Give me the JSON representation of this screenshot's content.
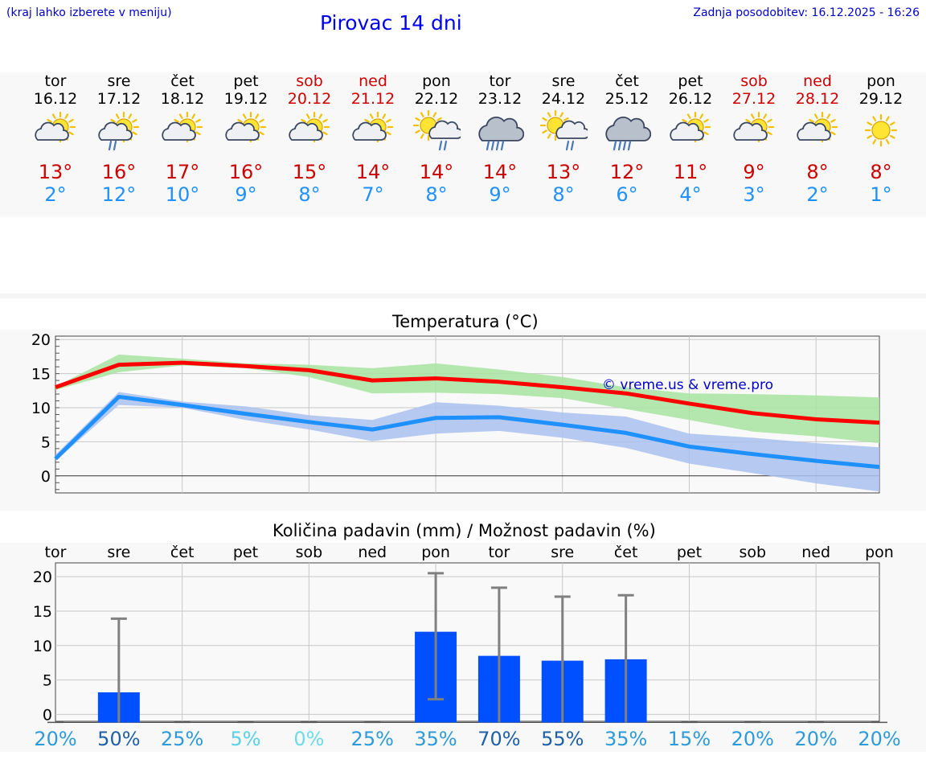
{
  "header": {
    "note": "(kraj lahko izberete v meniju)",
    "title": "Pirovac 14 dni",
    "updated": "Zadnja posodobitev: 16.12.2025 - 16:26"
  },
  "days": [
    {
      "name": "tor",
      "date": "16.12",
      "weekend": false,
      "icon": "sun-cloud-icon",
      "max": "13°",
      "min": "2°"
    },
    {
      "name": "sre",
      "date": "17.12",
      "weekend": false,
      "icon": "sun-cloud-rain-icon",
      "max": "16°",
      "min": "12°"
    },
    {
      "name": "čet",
      "date": "18.12",
      "weekend": false,
      "icon": "sun-cloud-icon",
      "max": "17°",
      "min": "10°"
    },
    {
      "name": "pet",
      "date": "19.12",
      "weekend": false,
      "icon": "sun-cloud-icon",
      "max": "16°",
      "min": "9°"
    },
    {
      "name": "sob",
      "date": "20.12",
      "weekend": true,
      "icon": "sun-cloud-icon",
      "max": "15°",
      "min": "8°"
    },
    {
      "name": "ned",
      "date": "21.12",
      "weekend": true,
      "icon": "sun-cloud-icon",
      "max": "14°",
      "min": "7°"
    },
    {
      "name": "pon",
      "date": "22.12",
      "weekend": false,
      "icon": "sun-rain-cloud-icon",
      "max": "14°",
      "min": "8°"
    },
    {
      "name": "tor",
      "date": "23.12",
      "weekend": false,
      "icon": "rain-cloud-icon",
      "max": "14°",
      "min": "9°"
    },
    {
      "name": "sre",
      "date": "24.12",
      "weekend": false,
      "icon": "sun-rain-cloud-icon",
      "max": "13°",
      "min": "8°"
    },
    {
      "name": "čet",
      "date": "25.12",
      "weekend": false,
      "icon": "rain-cloud-icon",
      "max": "12°",
      "min": "6°"
    },
    {
      "name": "pet",
      "date": "26.12",
      "weekend": false,
      "icon": "sun-cloud-icon",
      "max": "11°",
      "min": "4°"
    },
    {
      "name": "sob",
      "date": "27.12",
      "weekend": true,
      "icon": "sun-cloud-icon",
      "max": "9°",
      "min": "3°"
    },
    {
      "name": "ned",
      "date": "28.12",
      "weekend": true,
      "icon": "sun-cloud-icon",
      "max": "8°",
      "min": "2°"
    },
    {
      "name": "pon",
      "date": "29.12",
      "weekend": false,
      "icon": "sun-icon",
      "max": "8°",
      "min": "1°"
    }
  ],
  "chart_data": [
    {
      "type": "line",
      "title": "Temperatura (°C)",
      "watermark": "© vreme.us & vreme.pro",
      "ylim": [
        -2.5,
        20.5
      ],
      "yticks": [
        0,
        5,
        10,
        15,
        20
      ],
      "x": [
        0,
        1,
        2,
        3,
        4,
        5,
        6,
        7,
        8,
        9,
        10,
        11,
        12,
        13
      ],
      "series": [
        {
          "name": "max",
          "color": "#ff0000",
          "values": [
            13,
            16.3,
            16.6,
            16.1,
            15.5,
            14,
            14.3,
            13.8,
            13,
            12.1,
            10.6,
            9.2,
            8.3,
            7.8
          ]
        },
        {
          "name": "min",
          "color": "#1e90ff",
          "values": [
            2.5,
            11.6,
            10.4,
            9.1,
            7.9,
            6.8,
            8.5,
            8.6,
            7.5,
            6.3,
            4.3,
            3.2,
            2.2,
            1.3
          ]
        }
      ],
      "bands": [
        {
          "name": "max-range",
          "color": "#a8e4a0",
          "low": [
            12.6,
            15.2,
            16.2,
            15.8,
            14.5,
            12.1,
            12.2,
            12.0,
            11.4,
            9.8,
            8.2,
            6.5,
            5.8,
            4.8
          ],
          "high": [
            13.1,
            17.8,
            17.2,
            16.5,
            16.3,
            15.8,
            16.5,
            15.6,
            14.5,
            13.0,
            12.1,
            12.0,
            11.8,
            11.5
          ]
        },
        {
          "name": "min-range",
          "color": "#a9c1f0",
          "low": [
            2.2,
            10.4,
            10.0,
            8.2,
            6.8,
            5.1,
            6.2,
            6.6,
            5.6,
            4.1,
            1.8,
            0.4,
            -1.1,
            -2.3
          ],
          "high": [
            3.1,
            12.3,
            10.9,
            10.2,
            8.9,
            8.2,
            10.8,
            10.3,
            9.3,
            8.7,
            6.2,
            5.6,
            4.8,
            4.2
          ]
        }
      ]
    },
    {
      "type": "bar",
      "title": "Količina padavin (mm) / Možnost padavin (%)",
      "day_labels": [
        "tor",
        "sre",
        "čet",
        "pet",
        "sob",
        "ned",
        "pon",
        "tor",
        "sre",
        "čet",
        "pet",
        "sob",
        "ned",
        "pon"
      ],
      "ylim": [
        -1,
        22
      ],
      "yticks": [
        0,
        5,
        10,
        15,
        20
      ],
      "color": "#0050ff",
      "values": [
        0,
        3.2,
        0,
        0,
        0,
        0,
        12,
        8.5,
        7.8,
        8,
        0,
        0,
        0,
        0
      ],
      "error_low": [
        0,
        0,
        0,
        0,
        0,
        0,
        2.2,
        0,
        0,
        0,
        0,
        0,
        0,
        0
      ],
      "error_high": [
        0,
        13.9,
        0,
        0,
        0,
        0,
        20.5,
        18.4,
        17.1,
        17.3,
        0,
        0,
        0,
        0
      ],
      "probability": [
        "20%",
        "50%",
        "25%",
        "5%",
        "0%",
        "25%",
        "35%",
        "70%",
        "55%",
        "35%",
        "15%",
        "20%",
        "20%",
        "20%"
      ],
      "probability_colors": [
        "#2e9ad8",
        "#1f5fa8",
        "#2e9ad8",
        "#58d0e8",
        "#6ddbe8",
        "#2e9ad8",
        "#2e9ad8",
        "#1f5fa8",
        "#1f5fa8",
        "#2e9ad8",
        "#2e9ad8",
        "#2e9ad8",
        "#2e9ad8",
        "#2e9ad8"
      ]
    }
  ]
}
